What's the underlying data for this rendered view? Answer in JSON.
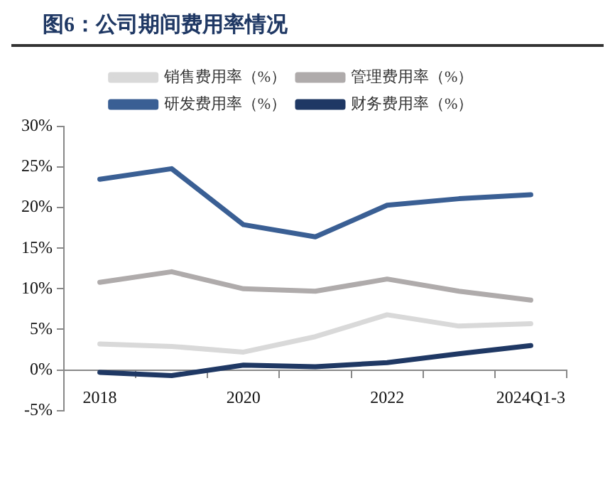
{
  "chart_data": {
    "type": "line",
    "title": "图6：公司期间费用率情况",
    "categories": [
      "2018",
      null,
      "2020",
      null,
      "2022",
      null,
      "2024Q1-3"
    ],
    "series": [
      {
        "name": "销售费用率（%）",
        "color": "#d9d9d9",
        "values": [
          3.2,
          2.9,
          2.2,
          4.1,
          6.8,
          5.4,
          5.7
        ]
      },
      {
        "name": "管理费用率（%）",
        "color": "#afabab",
        "values": [
          10.8,
          12.1,
          10.0,
          9.7,
          11.2,
          9.7,
          8.6
        ]
      },
      {
        "name": "研发费用率（%）",
        "color": "#3a5f94",
        "values": [
          23.5,
          24.8,
          17.9,
          16.4,
          20.3,
          21.1,
          21.6
        ]
      },
      {
        "name": "财务费用率（%）",
        "color": "#1f3864",
        "values": [
          -0.3,
          -0.7,
          0.6,
          0.4,
          0.9,
          2.0,
          3.0
        ]
      }
    ],
    "ylim": [
      -5,
      30
    ],
    "yticks": [
      {
        "value": -5,
        "label": "-5%"
      },
      {
        "value": 0,
        "label": "0%"
      },
      {
        "value": 5,
        "label": "5%"
      },
      {
        "value": 10,
        "label": "10%"
      },
      {
        "value": 15,
        "label": "15%"
      },
      {
        "value": 20,
        "label": "20%"
      },
      {
        "value": 25,
        "label": "25%"
      },
      {
        "value": 30,
        "label": "30%"
      }
    ],
    "grid": false,
    "legend": "top",
    "marker": "none",
    "line_style": "solid"
  }
}
